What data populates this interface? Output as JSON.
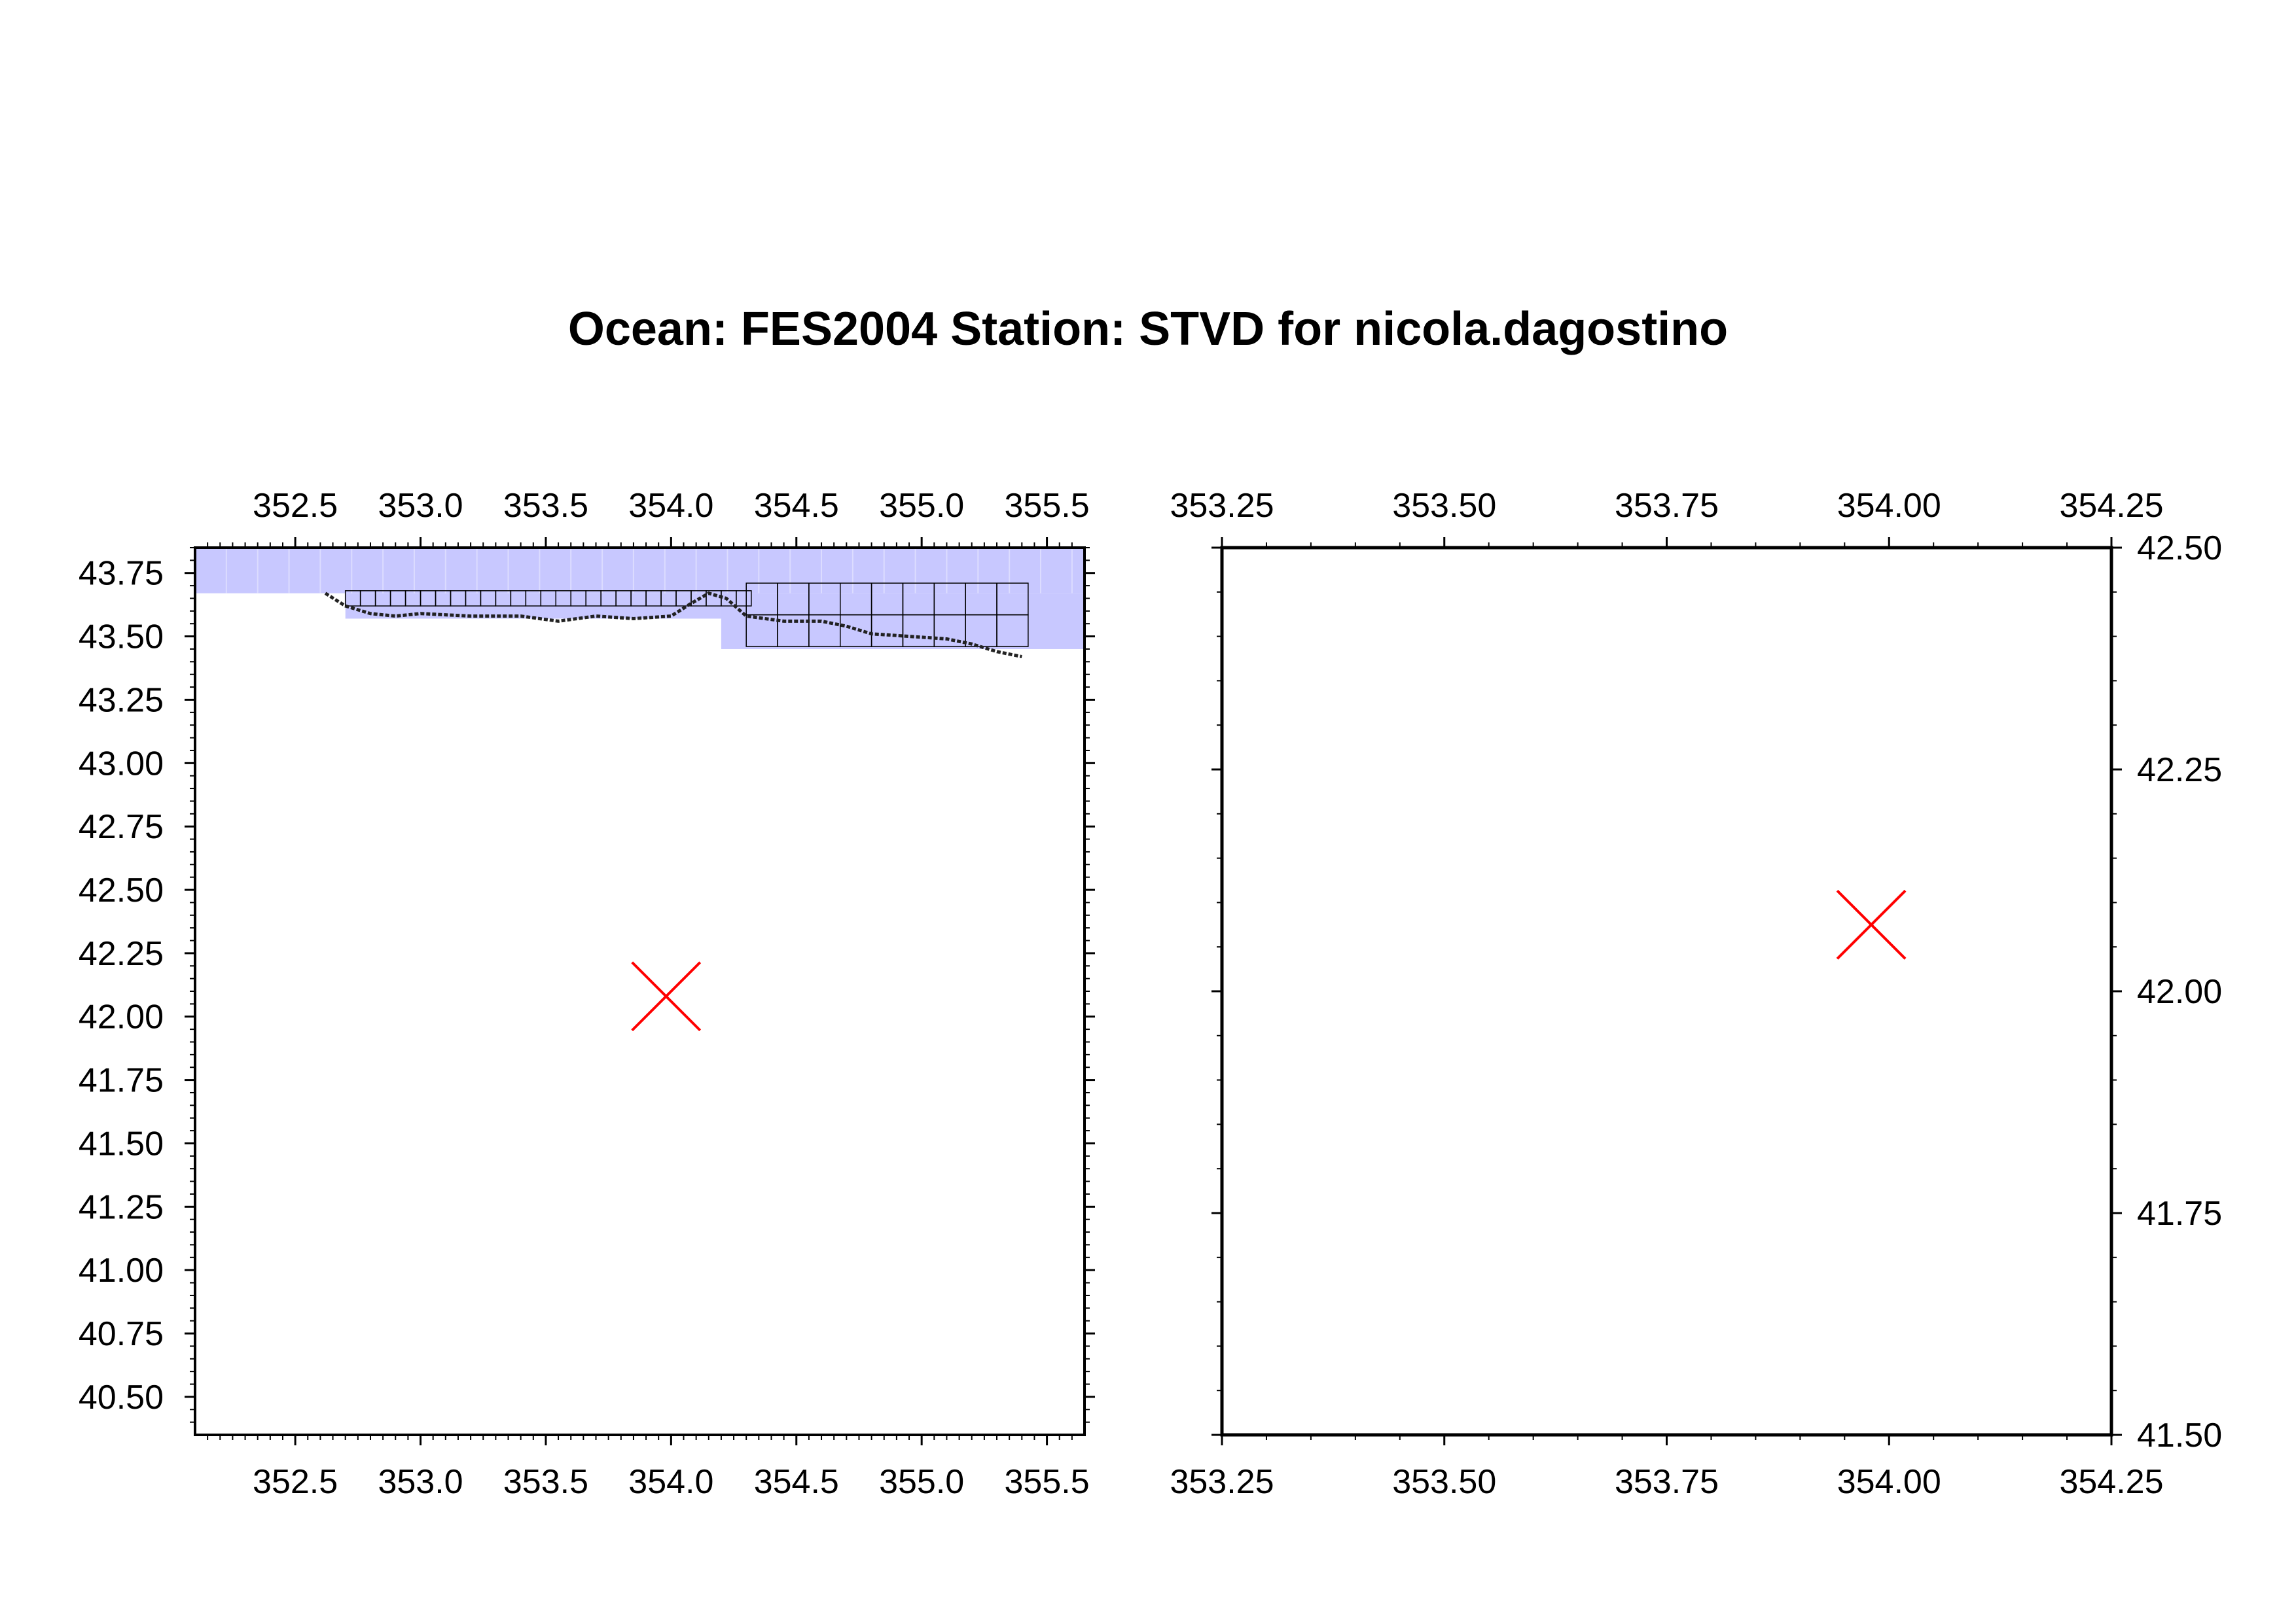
{
  "title": "Ocean: FES2004  Station: STVD  for nicola.dagostino",
  "colors": {
    "ocean_fill": "#c8c8ff",
    "grid_line": "#000000",
    "station_marker": "#ff0000",
    "axis": "#000000"
  },
  "chart_data": [
    {
      "type": "map",
      "panel": "left",
      "xlim": [
        352.1,
        355.65
      ],
      "ylim": [
        40.35,
        43.85
      ],
      "xticks": [
        "352.5",
        "353.0",
        "353.5",
        "354.0",
        "354.5",
        "355.0",
        "355.5"
      ],
      "yticks": [
        "40.50",
        "40.75",
        "41.00",
        "41.25",
        "41.50",
        "41.75",
        "42.00",
        "42.25",
        "42.50",
        "42.75",
        "43.00",
        "43.25",
        "43.50",
        "43.75"
      ],
      "ocean_regions": [
        {
          "lon": [
            352.1,
            355.65
          ],
          "lat": [
            43.67,
            43.85
          ]
        },
        {
          "lon": [
            352.7,
            354.2
          ],
          "lat": [
            43.57,
            43.67
          ]
        },
        {
          "lon": [
            354.2,
            354.4
          ],
          "lat": [
            43.57,
            43.67
          ]
        },
        {
          "lon": [
            354.2,
            355.65
          ],
          "lat": [
            43.45,
            43.67
          ]
        }
      ],
      "coastline": [
        [
          352.62,
          43.67
        ],
        [
          352.7,
          43.62
        ],
        [
          352.8,
          43.59
        ],
        [
          352.9,
          43.58
        ],
        [
          353.0,
          43.59
        ],
        [
          353.2,
          43.58
        ],
        [
          353.4,
          43.58
        ],
        [
          353.55,
          43.56
        ],
        [
          353.7,
          43.58
        ],
        [
          353.85,
          43.57
        ],
        [
          354.0,
          43.58
        ],
        [
          354.08,
          43.63
        ],
        [
          354.15,
          43.67
        ],
        [
          354.22,
          43.65
        ],
        [
          354.3,
          43.58
        ],
        [
          354.45,
          43.56
        ],
        [
          354.6,
          43.56
        ],
        [
          354.7,
          43.54
        ],
        [
          354.8,
          43.51
        ],
        [
          354.95,
          43.5
        ],
        [
          355.1,
          43.49
        ],
        [
          355.2,
          43.47
        ],
        [
          355.3,
          43.44
        ],
        [
          355.4,
          43.42
        ]
      ],
      "grid_cells": [
        {
          "lon": [
            354.3,
            355.42
          ],
          "lat": [
            43.46,
            43.68
          ],
          "step": 0.125
        }
      ],
      "station": {
        "lon": 353.98,
        "lat": 42.08
      }
    },
    {
      "type": "map",
      "panel": "right",
      "xlim": [
        353.25,
        354.25
      ],
      "ylim": [
        41.5,
        42.5
      ],
      "xticks": [
        "353.25",
        "353.50",
        "353.75",
        "354.00",
        "354.25"
      ],
      "yticks": [
        "41.50",
        "41.75",
        "42.00",
        "42.25",
        "42.50"
      ],
      "station": {
        "lon": 353.98,
        "lat": 42.075
      }
    }
  ]
}
